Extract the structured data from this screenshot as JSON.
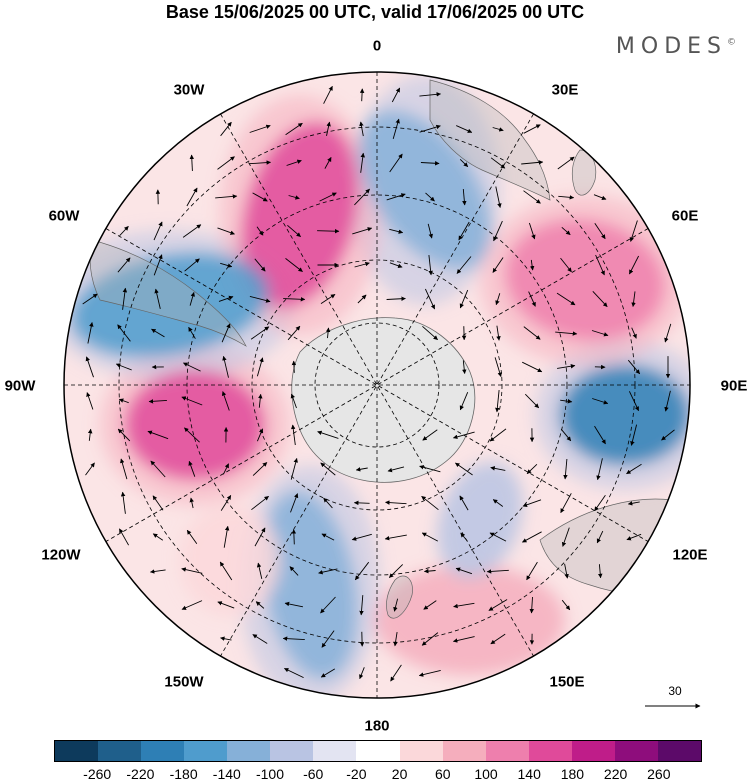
{
  "title": "Base 15/06/2025 00 UTC, valid 17/06/2025 00 UTC",
  "brand": {
    "name": "MODES",
    "mark": "©"
  },
  "longitude_labels": [
    "0",
    "30E",
    "60E",
    "90E",
    "120E",
    "150E",
    "180",
    "150W",
    "120W",
    "90W",
    "60W",
    "30W"
  ],
  "reference_vector": {
    "label": "30"
  },
  "colorbar": {
    "colors": [
      "#0d3a5c",
      "#1f5f8b",
      "#2e7fb5",
      "#4f9ccd",
      "#86b0d8",
      "#b9c4e3",
      "#e3e4f2",
      "#ffffff",
      "#fbd8da",
      "#f5aebd",
      "#ee7fad",
      "#e04a9a",
      "#bf1d89",
      "#8e0d7c",
      "#5c0a69"
    ],
    "ticks": [
      "-260",
      "-220",
      "-180",
      "-140",
      "-100",
      "-60",
      "-20",
      "20",
      "60",
      "100",
      "140",
      "180",
      "220",
      "260"
    ]
  },
  "map_data": {
    "projection": "south polar stereographic",
    "field": "anomaly (shaded) with wind vectors",
    "anomalies": [
      {
        "name": "positive-anomaly-30w",
        "value": 160,
        "color": "#e04a9a"
      },
      {
        "name": "negative-anomaly-10e",
        "value": -120,
        "color": "#86b0d8"
      },
      {
        "name": "positive-anomaly-60e",
        "value": 120,
        "color": "#ee7fad"
      },
      {
        "name": "negative-anomaly-60w",
        "value": -140,
        "color": "#4f9ccd"
      },
      {
        "name": "positive-anomaly-100w",
        "value": 170,
        "color": "#e04a9a"
      },
      {
        "name": "negative-anomaly-95e",
        "value": -200,
        "color": "#2e7fb5"
      },
      {
        "name": "negative-anomaly-160w",
        "value": -120,
        "color": "#86b0d8"
      },
      {
        "name": "positive-anomaly-150e",
        "value": 80,
        "color": "#f5aebd"
      },
      {
        "name": "positive-anomaly-130w",
        "value": 60,
        "color": "#fbd8da"
      },
      {
        "name": "negative-anomaly-120e",
        "value": -60,
        "color": "#b9c4e3"
      }
    ]
  }
}
